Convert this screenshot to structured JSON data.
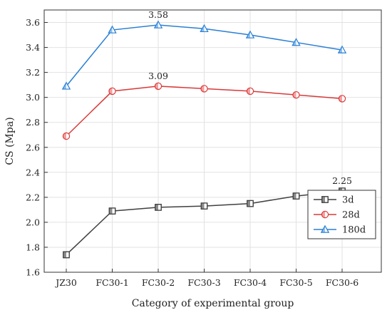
{
  "chart_data": {
    "type": "line",
    "title": "",
    "xlabel": "Category of experimental group",
    "ylabel": "CS (Mpa)",
    "categories": [
      "JZ30",
      "FC30-1",
      "FC30-2",
      "FC30-3",
      "FC30-4",
      "FC30-5",
      "FC30-6"
    ],
    "ylim": [
      1.6,
      3.7
    ],
    "yticks": [
      "1.6",
      "1.8",
      "2.0",
      "2.2",
      "2.4",
      "2.6",
      "2.8",
      "3.0",
      "3.2",
      "3.4",
      "3.6"
    ],
    "grid": true,
    "legend_position": "bottom-right",
    "series": [
      {
        "name": "3d",
        "color": "#404040",
        "fill": "#8c8c8c",
        "marker": "square-half",
        "values": [
          1.74,
          2.09,
          2.12,
          2.13,
          2.15,
          2.21,
          2.25
        ]
      },
      {
        "name": "28d",
        "color": "#d93a3a",
        "fill": "#f4a0a0",
        "marker": "circle-half",
        "values": [
          2.69,
          3.05,
          3.09,
          3.07,
          3.05,
          3.02,
          2.99
        ]
      },
      {
        "name": "180d",
        "color": "#2a7fd4",
        "fill": "#8fc0ef",
        "marker": "triangle-half",
        "values": [
          3.09,
          3.54,
          3.58,
          3.55,
          3.5,
          3.44,
          3.38
        ]
      }
    ],
    "annotations": [
      {
        "text": "2.25",
        "series": 0,
        "index": 6
      },
      {
        "text": "3.09",
        "series": 1,
        "index": 2
      },
      {
        "text": "3.58",
        "series": 2,
        "index": 2
      }
    ]
  }
}
